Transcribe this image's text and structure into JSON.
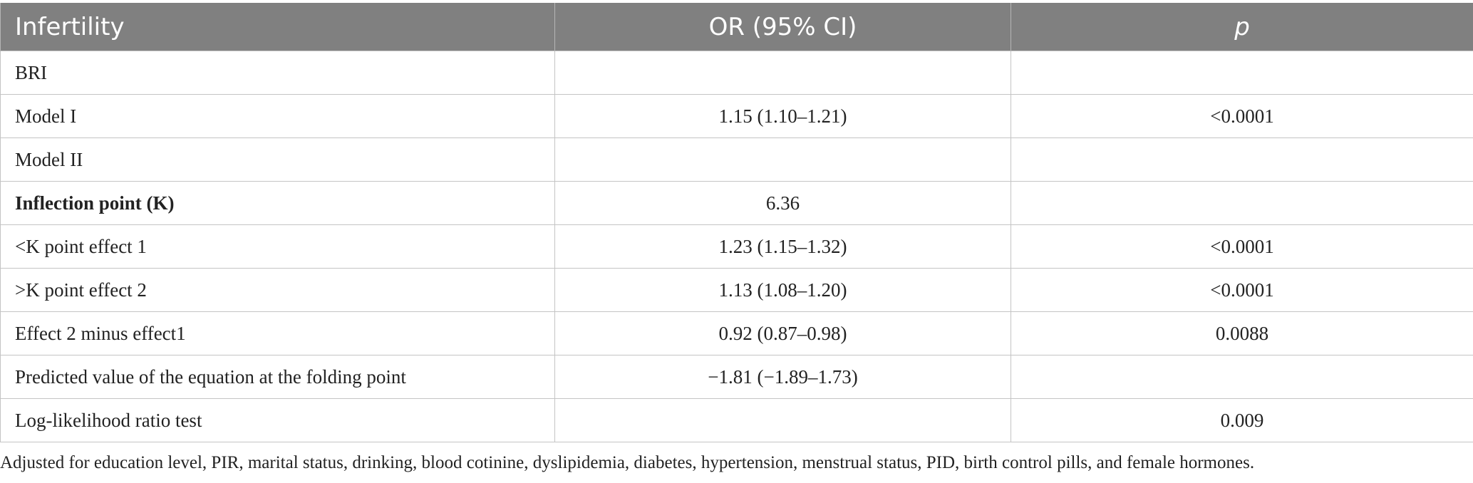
{
  "table": {
    "headers": [
      "Infertility",
      "OR (95% CI)",
      "p"
    ],
    "rows": [
      {
        "label": "BRI",
        "or": "",
        "p": "",
        "bold": false
      },
      {
        "label": "Model I",
        "or": "1.15 (1.10–1.21)",
        "p": "<0.0001",
        "bold": false
      },
      {
        "label": "Model II",
        "or": "",
        "p": "",
        "bold": false
      },
      {
        "label": "Inflection point (K)",
        "or": "6.36",
        "p": "",
        "bold": true
      },
      {
        "label": "<K point effect 1",
        "or": "1.23 (1.15–1.32)",
        "p": "<0.0001",
        "bold": false
      },
      {
        "label": ">K point effect 2",
        "or": "1.13 (1.08–1.20)",
        "p": "<0.0001",
        "bold": false
      },
      {
        "label": "Effect 2 minus effect1",
        "or": "0.92 (0.87–0.98)",
        "p": "0.0088",
        "bold": false
      },
      {
        "label": "Predicted value of the equation at the folding point",
        "or": "−1.81 (−1.89–1.73)",
        "p": "",
        "bold": false
      },
      {
        "label": "Log-likelihood ratio test",
        "or": "",
        "p": "0.009",
        "bold": false
      }
    ]
  },
  "footnote": "Adjusted for education level, PIR, marital status, drinking, blood cotinine, dyslipidemia, diabetes, hypertension, menstrual status, PID, birth control pills, and female hormones.",
  "colors": {
    "header_bg": "#808080",
    "header_text": "#ffffff",
    "border": "#c4c4c4",
    "body_text": "#222222"
  }
}
